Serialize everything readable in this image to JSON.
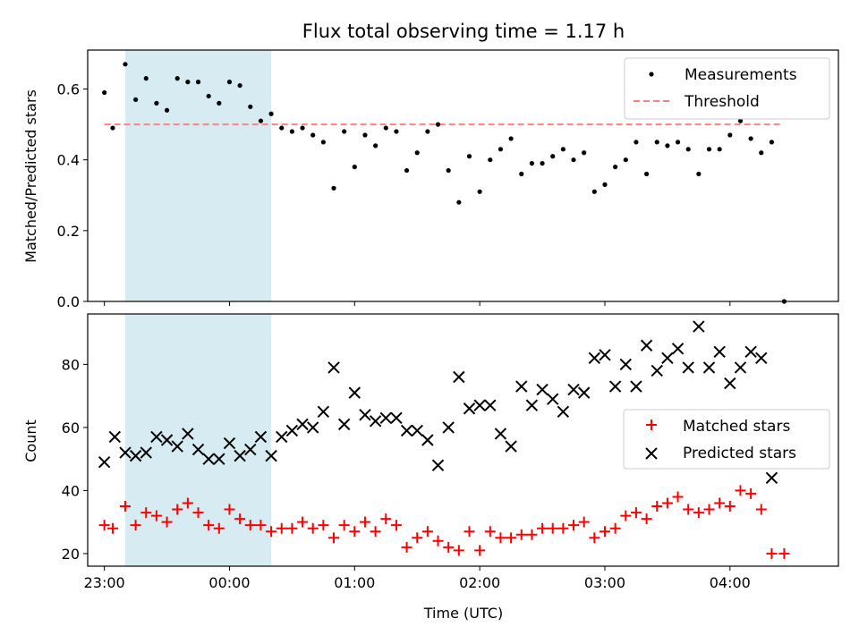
{
  "title": "Flux total observing time = 1.17 h",
  "colors": {
    "highlight": "#add8e6",
    "threshold": "#ff8080",
    "measurement": "#000000",
    "matched": "#ff0000",
    "predicted": "#000000"
  },
  "chart_data": [
    {
      "type": "scatter",
      "ylabel": "Matched/Predicted stars",
      "ylim": [
        0,
        0.71
      ],
      "yticks": [
        0.0,
        0.2,
        0.4,
        0.6
      ],
      "ytick_labels": [
        "0.0",
        "0.2",
        "0.4",
        "0.6"
      ],
      "xlim": [
        "22:52",
        "04:52"
      ],
      "highlight_span": [
        "23:10",
        "00:20"
      ],
      "legend": {
        "placement": "top-right",
        "entries": [
          "Measurements",
          "Threshold"
        ]
      },
      "threshold": {
        "name": "Threshold",
        "value": 0.5,
        "x_range": [
          "23:00",
          "04:25"
        ]
      },
      "series": [
        {
          "name": "Measurements",
          "marker": "dot",
          "x": [
            "23:00",
            "23:04",
            "23:10",
            "23:15",
            "23:20",
            "23:25",
            "23:30",
            "23:35",
            "23:40",
            "23:45",
            "23:50",
            "23:55",
            "00:00",
            "00:05",
            "00:10",
            "00:15",
            "00:20",
            "00:25",
            "00:30",
            "00:35",
            "00:40",
            "00:45",
            "00:50",
            "00:55",
            "01:00",
            "01:05",
            "01:10",
            "01:15",
            "01:20",
            "01:25",
            "01:30",
            "01:35",
            "01:40",
            "01:45",
            "01:50",
            "01:55",
            "02:00",
            "02:05",
            "02:10",
            "02:15",
            "02:20",
            "02:25",
            "02:30",
            "02:35",
            "02:40",
            "02:45",
            "02:50",
            "02:55",
            "03:00",
            "03:05",
            "03:10",
            "03:15",
            "03:20",
            "03:25",
            "03:30",
            "03:35",
            "03:40",
            "03:45",
            "03:50",
            "03:55",
            "04:00",
            "04:05",
            "04:10",
            "04:15",
            "04:20",
            "04:26"
          ],
          "y": [
            0.59,
            0.49,
            0.67,
            0.57,
            0.63,
            0.56,
            0.54,
            0.63,
            0.62,
            0.62,
            0.58,
            0.56,
            0.62,
            0.61,
            0.55,
            0.51,
            0.53,
            0.49,
            0.48,
            0.49,
            0.47,
            0.45,
            0.32,
            0.48,
            0.38,
            0.47,
            0.44,
            0.49,
            0.48,
            0.37,
            0.42,
            0.48,
            0.5,
            0.37,
            0.28,
            0.41,
            0.31,
            0.4,
            0.43,
            0.46,
            0.36,
            0.39,
            0.39,
            0.41,
            0.43,
            0.4,
            0.42,
            0.31,
            0.33,
            0.38,
            0.4,
            0.45,
            0.36,
            0.45,
            0.44,
            0.45,
            0.43,
            0.36,
            0.43,
            0.43,
            0.47,
            0.51,
            0.46,
            0.42,
            0.45,
            0.0
          ]
        }
      ]
    },
    {
      "type": "scatter",
      "xlabel": "Time (UTC)",
      "ylabel": "Count",
      "ylim": [
        16,
        96
      ],
      "yticks": [
        20,
        40,
        60,
        80
      ],
      "ytick_labels": [
        "20",
        "40",
        "60",
        "80"
      ],
      "xlim": [
        "22:52",
        "04:52"
      ],
      "xticks": [
        "23:00",
        "00:00",
        "01:00",
        "02:00",
        "03:00",
        "04:00"
      ],
      "xtick_labels": [
        "23:00",
        "00:00",
        "01:00",
        "02:00",
        "03:00",
        "04:00"
      ],
      "highlight_span": [
        "23:10",
        "00:20"
      ],
      "legend": {
        "placement": "center-right",
        "entries": [
          "Matched stars",
          "Predicted stars"
        ]
      },
      "series": [
        {
          "name": "Matched stars",
          "marker": "plus",
          "x": [
            "23:00",
            "23:04",
            "23:10",
            "23:15",
            "23:20",
            "23:25",
            "23:30",
            "23:35",
            "23:40",
            "23:45",
            "23:50",
            "23:55",
            "00:00",
            "00:05",
            "00:10",
            "00:15",
            "00:20",
            "00:25",
            "00:30",
            "00:35",
            "00:40",
            "00:45",
            "00:50",
            "00:55",
            "01:00",
            "01:05",
            "01:10",
            "01:15",
            "01:20",
            "01:25",
            "01:30",
            "01:35",
            "01:40",
            "01:45",
            "01:50",
            "01:55",
            "02:00",
            "02:05",
            "02:10",
            "02:15",
            "02:20",
            "02:25",
            "02:30",
            "02:35",
            "02:40",
            "02:45",
            "02:50",
            "02:55",
            "03:00",
            "03:05",
            "03:10",
            "03:15",
            "03:20",
            "03:25",
            "03:30",
            "03:35",
            "03:40",
            "03:45",
            "03:50",
            "03:55",
            "04:00",
            "04:05",
            "04:10",
            "04:15",
            "04:20",
            "04:26"
          ],
          "y": [
            29,
            28,
            35,
            29,
            33,
            32,
            30,
            34,
            36,
            33,
            29,
            28,
            34,
            31,
            29,
            29,
            27,
            28,
            28,
            30,
            28,
            29,
            25,
            29,
            27,
            30,
            27,
            31,
            29,
            22,
            25,
            27,
            24,
            22,
            21,
            27,
            21,
            27,
            25,
            25,
            26,
            26,
            28,
            28,
            28,
            29,
            30,
            25,
            27,
            28,
            32,
            33,
            31,
            35,
            36,
            38,
            34,
            33,
            34,
            36,
            35,
            40,
            39,
            34,
            20,
            20
          ]
        },
        {
          "name": "Predicted stars",
          "marker": "x",
          "x": [
            "23:00",
            "23:05",
            "23:10",
            "23:15",
            "23:20",
            "23:25",
            "23:30",
            "23:35",
            "23:40",
            "23:45",
            "23:50",
            "23:55",
            "00:00",
            "00:05",
            "00:10",
            "00:15",
            "00:20",
            "00:25",
            "00:30",
            "00:35",
            "00:40",
            "00:45",
            "00:50",
            "00:55",
            "01:00",
            "01:05",
            "01:10",
            "01:15",
            "01:20",
            "01:25",
            "01:30",
            "01:35",
            "01:40",
            "01:45",
            "01:50",
            "01:55",
            "02:00",
            "02:05",
            "02:10",
            "02:15",
            "02:20",
            "02:25",
            "02:30",
            "02:35",
            "02:40",
            "02:45",
            "02:50",
            "02:55",
            "03:00",
            "03:05",
            "03:10",
            "03:15",
            "03:20",
            "03:25",
            "03:30",
            "03:35",
            "03:40",
            "03:45",
            "03:50",
            "03:55",
            "04:00",
            "04:05",
            "04:10",
            "04:15",
            "04:20"
          ],
          "y": [
            49,
            57,
            52,
            51,
            52,
            57,
            56,
            54,
            58,
            53,
            50,
            50,
            55,
            51,
            53,
            57,
            51,
            57,
            59,
            61,
            60,
            65,
            79,
            61,
            71,
            64,
            62,
            63,
            63,
            59,
            59,
            56,
            48,
            60,
            76,
            66,
            67,
            67,
            58,
            54,
            73,
            67,
            72,
            69,
            65,
            72,
            71,
            82,
            83,
            73,
            80,
            73,
            86,
            78,
            82,
            85,
            79,
            92,
            79,
            84,
            74,
            79,
            84,
            82,
            44
          ]
        }
      ]
    }
  ]
}
